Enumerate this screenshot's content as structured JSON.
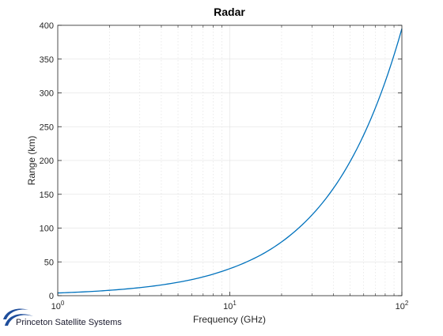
{
  "chart_data": {
    "type": "line",
    "title": "Radar",
    "xlabel": "Frequency (GHz)",
    "ylabel": "Range (km)",
    "xscale": "log",
    "xlim": [
      1,
      100
    ],
    "ylim": [
      0,
      400
    ],
    "grid": true,
    "x_ticks": [
      {
        "value": 1,
        "base": "10",
        "exp": "0"
      },
      {
        "value": 10,
        "base": "10",
        "exp": "1"
      },
      {
        "value": 100,
        "base": "10",
        "exp": "2"
      }
    ],
    "y_ticks": [
      0,
      50,
      100,
      150,
      200,
      250,
      300,
      350,
      400
    ],
    "series": [
      {
        "color": "#0072BD",
        "x": [
          1,
          1.585,
          2.512,
          3.981,
          6.31,
          10,
          15.85,
          25.12,
          39.81,
          63.1,
          100
        ],
        "y": [
          4,
          6.3,
          10,
          15.8,
          25,
          40,
          63,
          100,
          158,
          250,
          395
        ]
      }
    ]
  },
  "logo": {
    "text": "Princeton Satellite Systems",
    "color": "#1f4e9c"
  }
}
